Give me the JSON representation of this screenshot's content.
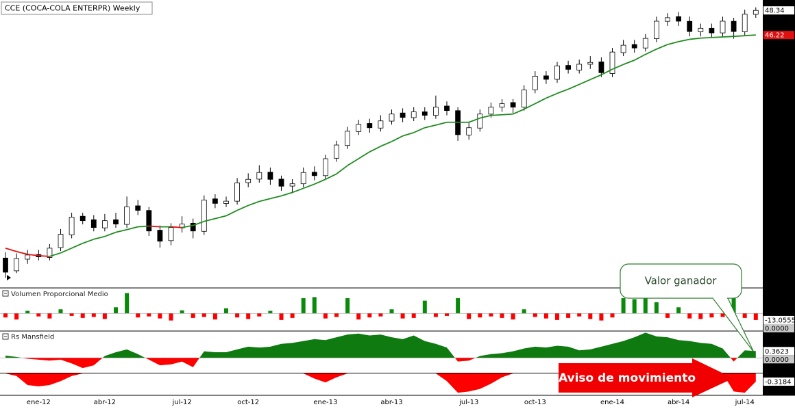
{
  "chart_data": [
    {
      "type": "candlestick",
      "title": "CCE (COCA-COLA ENTERPR) Weekly",
      "categories": [
        null,
        null,
        null,
        "ene-12",
        null,
        null,
        null,
        null,
        null,
        "abr-12",
        null,
        null,
        null,
        null,
        null,
        null,
        "jul-12",
        null,
        null,
        null,
        null,
        null,
        "oct-12",
        null,
        null,
        null,
        null,
        null,
        null,
        "ene-13",
        null,
        null,
        null,
        null,
        null,
        "abr-13",
        null,
        null,
        null,
        null,
        null,
        null,
        "jul-13",
        null,
        null,
        null,
        null,
        null,
        "oct-13",
        null,
        null,
        null,
        null,
        null,
        null,
        "ene-14",
        null,
        null,
        null,
        null,
        null,
        "abr-14",
        null,
        null,
        null,
        null,
        null,
        "jul-14",
        null
      ],
      "open": [
        27.0,
        25.9,
        26.9,
        27.3,
        27.05,
        27.9,
        29.0,
        30.6,
        30.3,
        29.6,
        30.3,
        29.9,
        31.5,
        31.1,
        29.4,
        28.5,
        29.6,
        30.0,
        29.3,
        32.1,
        31.7,
        31.9,
        33.5,
        33.8,
        34.4,
        33.8,
        33.2,
        33.4,
        34.4,
        34.1,
        35.6,
        36.7,
        37.9,
        38.6,
        38.2,
        38.8,
        39.5,
        39.1,
        39.6,
        39.3,
        40.1,
        39.7,
        37.6,
        38.2,
        39.4,
        40.0,
        40.4,
        40.0,
        41.5,
        42.7,
        42.4,
        43.6,
        43.2,
        43.7,
        43.9,
        42.9,
        44.7,
        45.4,
        45.1,
        45.9,
        47.4,
        47.8,
        47.4,
        46.5,
        46.8,
        46.4,
        47.4,
        46.5,
        48.0
      ],
      "high": [
        27.5,
        27.4,
        27.7,
        27.7,
        28.2,
        29.5,
        30.9,
        30.9,
        30.7,
        30.8,
        30.9,
        32.3,
        32.0,
        31.4,
        29.8,
        30.0,
        30.6,
        30.4,
        32.4,
        32.5,
        32.3,
        33.9,
        34.3,
        35.0,
        34.8,
        34.1,
        33.8,
        34.8,
        34.9,
        35.9,
        37.1,
        38.3,
        38.9,
        39.0,
        39.3,
        39.8,
        39.9,
        40.0,
        40.0,
        41.0,
        40.5,
        40.0,
        38.7,
        39.8,
        40.4,
        40.7,
        40.7,
        41.9,
        43.1,
        43.1,
        43.9,
        44.0,
        44.1,
        44.4,
        44.3,
        45.1,
        45.8,
        45.8,
        46.3,
        47.8,
        48.1,
        48.2,
        47.8,
        47.2,
        47.2,
        47.8,
        47.7,
        48.4,
        48.6
      ],
      "low": [
        25.3,
        25.7,
        26.5,
        26.8,
        26.8,
        27.6,
        28.7,
        29.9,
        29.3,
        29.3,
        29.6,
        29.6,
        30.7,
        28.9,
        27.9,
        28.1,
        29.2,
        28.7,
        29.0,
        31.3,
        31.4,
        31.6,
        33.1,
        33.5,
        33.3,
        32.8,
        32.6,
        33.1,
        33.7,
        33.8,
        35.3,
        36.4,
        37.6,
        37.8,
        37.9,
        38.5,
        38.7,
        38.8,
        38.9,
        39.0,
        39.3,
        37.1,
        37.2,
        37.9,
        39.1,
        39.6,
        39.5,
        39.7,
        41.2,
        42.0,
        42.1,
        42.9,
        42.9,
        43.3,
        42.6,
        42.6,
        44.4,
        44.7,
        44.8,
        45.6,
        47.0,
        47.0,
        46.1,
        46.1,
        46.0,
        46.1,
        45.9,
        46.2,
        47.7
      ],
      "close": [
        25.78,
        26.96,
        27.26,
        27.1,
        27.85,
        29.04,
        30.52,
        30.22,
        29.63,
        30.22,
        29.93,
        31.41,
        31.11,
        29.33,
        28.45,
        29.63,
        29.93,
        29.33,
        32.0,
        31.71,
        31.9,
        33.48,
        33.78,
        34.37,
        33.78,
        33.19,
        33.4,
        34.37,
        34.1,
        35.56,
        36.74,
        37.93,
        38.52,
        38.23,
        38.82,
        39.41,
        39.12,
        39.6,
        39.3,
        40.0,
        39.71,
        37.63,
        38.23,
        39.41,
        40.0,
        40.3,
        40.0,
        41.49,
        42.67,
        42.4,
        43.56,
        43.26,
        43.7,
        43.86,
        42.97,
        44.75,
        45.34,
        45.1,
        45.93,
        47.41,
        47.71,
        47.41,
        46.52,
        46.8,
        46.4,
        47.41,
        46.52,
        48.01,
        48.34
      ],
      "up_color": "#ffffff",
      "down_color": "#000000",
      "moving_average": {
        "values": [
          27.85,
          27.56,
          27.32,
          27.2,
          27.14,
          27.44,
          27.85,
          28.27,
          28.62,
          28.86,
          29.22,
          29.45,
          29.69,
          29.75,
          29.69,
          29.69,
          29.63,
          29.81,
          30.16,
          30.4,
          30.64,
          31.11,
          31.53,
          31.88,
          32.12,
          32.36,
          32.65,
          33.01,
          33.37,
          33.78,
          34.25,
          34.97,
          35.56,
          36.15,
          36.63,
          37.04,
          37.52,
          37.81,
          38.23,
          38.46,
          38.7,
          38.7,
          38.7,
          39.06,
          39.29,
          39.35,
          39.41,
          39.83,
          40.3,
          40.78,
          41.19,
          41.55,
          41.96,
          42.38,
          42.79,
          43.27,
          43.68,
          44.05,
          44.55,
          45.0,
          45.4,
          45.65,
          45.85,
          45.95,
          46.0,
          46.05,
          46.1,
          46.16,
          46.22
        ],
        "color": "#1e8c1e",
        "down_color": "#e01010"
      },
      "ylim": [
        24.6,
        49.0
      ],
      "annotations": [
        "Valor ganador",
        "Aviso de movimiento"
      ]
    },
    {
      "type": "bar",
      "title": "Volumen Proporcional Medio",
      "values": [
        -8,
        -12,
        5,
        -6,
        -10,
        8,
        -5,
        -9,
        -7,
        -11,
        12,
        40,
        -8,
        -6,
        -10,
        -14,
        6,
        -9,
        -7,
        -12,
        10,
        -8,
        -11,
        -6,
        5,
        -13,
        -9,
        30,
        32,
        -10,
        -7,
        30,
        -12,
        -8,
        -6,
        8,
        -10,
        -9,
        25,
        -7,
        -5,
        30,
        -11,
        -8,
        -6,
        -9,
        -12,
        8,
        -7,
        -10,
        -13,
        -9,
        -6,
        -11,
        -14,
        -8,
        30,
        28,
        35,
        22,
        -9,
        12,
        -10,
        -11,
        -8,
        -7,
        35,
        -9,
        -13.0555
      ],
      "up_color": "#0a8a0a",
      "down_color": "#ff0000",
      "ylim": [
        -32,
        46
      ],
      "yticks": [
        {
          "value": 0,
          "label": "0.0000"
        }
      ]
    },
    {
      "type": "area",
      "title": "Rs Mansfield",
      "values": [
        0.12,
        0.05,
        -0.05,
        -0.1,
        -0.15,
        -0.1,
        -0.3,
        -0.55,
        -0.4,
        0.1,
        0.3,
        0.45,
        0.2,
        -0.1,
        -0.4,
        -0.35,
        -0.2,
        -0.5,
        0.35,
        0.3,
        0.3,
        0.45,
        0.6,
        0.55,
        0.6,
        0.75,
        0.8,
        0.9,
        1.0,
        0.95,
        1.1,
        1.25,
        1.3,
        1.2,
        1.25,
        1.1,
        1.0,
        1.2,
        0.9,
        0.75,
        0.55,
        -0.2,
        -0.15,
        0.1,
        0.2,
        0.25,
        0.35,
        0.5,
        0.6,
        0.55,
        0.65,
        0.6,
        0.4,
        0.45,
        0.6,
        0.75,
        0.9,
        1.1,
        1.35,
        1.15,
        1.1,
        0.95,
        0.9,
        0.8,
        0.75,
        0.5,
        -0.2,
        0.4,
        0.3623
      ],
      "up_color": "#0f7a0f",
      "down_color": "#ff0000",
      "ylim": [
        -0.8,
        1.4
      ],
      "yticks": [
        {
          "value": 0,
          "label": "0.0000"
        }
      ]
    },
    {
      "type": "area",
      "values": [
        0,
        -0.1,
        -0.45,
        -0.5,
        -0.45,
        -0.3,
        -0.1,
        0,
        0,
        0,
        0,
        0,
        0,
        0,
        0,
        0,
        0,
        0,
        0,
        0,
        0,
        0,
        0,
        0,
        0,
        0,
        0,
        0,
        -0.2,
        -0.35,
        -0.15,
        0,
        0,
        0,
        0,
        0,
        0,
        0,
        0,
        0,
        -0.3,
        -0.75,
        -0.7,
        -0.6,
        -0.4,
        -0.15,
        0,
        0,
        0,
        0,
        0,
        0,
        0,
        0,
        0,
        0,
        0,
        0,
        0,
        0,
        0,
        0,
        0,
        0,
        0,
        0,
        -0.7,
        -0.75,
        -0.3184
      ],
      "color": "#ff0000",
      "ylim": [
        -0.85,
        0
      ]
    }
  ]
}
